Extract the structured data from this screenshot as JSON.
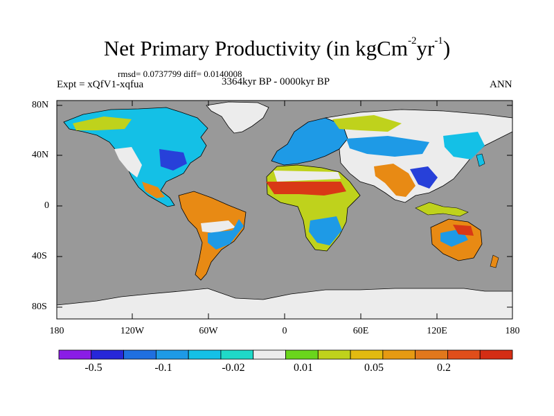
{
  "title": {
    "text": "Net Primary Productivity (in kgCm",
    "sup1": "-2",
    "mid": "yr",
    "sup2": "-1",
    "close": ")"
  },
  "stats": "rmsd= 0.0737799 diff= 0.0140008",
  "experiment": "Expt = xQfV1-xqfua",
  "period": "3364kyr BP - 0000kyr BP",
  "season": "ANN",
  "lat_labels": [
    "80N",
    "40N",
    "0",
    "40S",
    "80S"
  ],
  "lon_labels": [
    "180",
    "120W",
    "60W",
    "0",
    "60E",
    "120E",
    "180"
  ],
  "colorbar": {
    "colors": [
      "#8a1de6",
      "#2727d9",
      "#1f6fe0",
      "#1e9ae6",
      "#14c0e6",
      "#1fd9c8",
      "#ececec",
      "#6ad61c",
      "#bfd21c",
      "#e2ba10",
      "#e69a12",
      "#e2781c",
      "#e04e1a",
      "#d42d14"
    ],
    "labels": [
      "-0.5",
      "-0.1",
      "-0.02",
      "0.01",
      "0.05",
      "0.2"
    ]
  },
  "colors": {
    "ocean": "#999999",
    "antarctica": "#ececec",
    "high_pos": "#d93816",
    "mid_pos": "#e88a14",
    "low_pos": "#bfd21c",
    "small_pos": "#6ad61c",
    "neutral": "#ececec",
    "small_neg": "#1fd9c8",
    "low_neg": "#14c0e6",
    "mid_neg": "#1e9ae6",
    "high_neg": "#2740d9"
  }
}
